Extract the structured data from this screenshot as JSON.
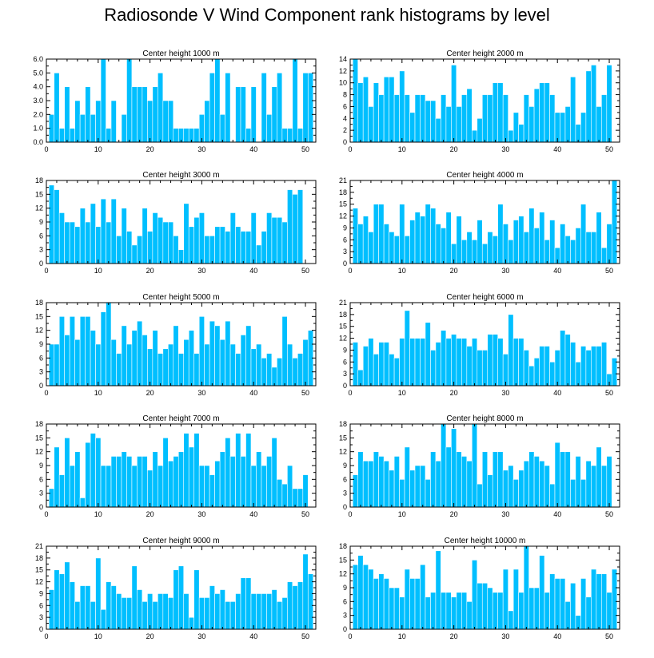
{
  "figure": {
    "title": "Radiosonde V Wind Component rank histograms by level",
    "bar_color": "#00bfff",
    "bar_edge_color": "#ffffff",
    "axis_color": "#000000"
  },
  "chart_data": [
    {
      "type": "bar",
      "title": "Center height 1000 m",
      "x": [
        1,
        2,
        3,
        4,
        5,
        6,
        7,
        8,
        9,
        10,
        11,
        12,
        13,
        14,
        15,
        16,
        17,
        18,
        19,
        20,
        21,
        22,
        23,
        24,
        25,
        26,
        27,
        28,
        29,
        30,
        31,
        32,
        33,
        34,
        35,
        36,
        37,
        38,
        39,
        40,
        41,
        42,
        43,
        44,
        45,
        46,
        47,
        48,
        49,
        50,
        51
      ],
      "values": [
        2,
        5,
        1,
        4,
        1,
        3,
        2,
        4,
        2,
        3,
        6,
        1,
        3,
        0,
        2,
        6,
        4,
        4,
        4,
        3,
        4,
        5,
        3,
        3,
        1,
        1,
        1,
        1,
        1,
        2,
        3,
        5,
        6,
        2,
        5,
        0,
        4,
        4,
        1,
        4,
        0,
        5,
        2,
        4,
        5,
        1,
        1,
        6,
        1,
        5,
        5
      ],
      "xlim": [
        0,
        52
      ],
      "ylim": [
        0,
        6
      ],
      "xticks": [
        0,
        10,
        20,
        30,
        40,
        50
      ],
      "yticks": [
        0,
        1,
        2,
        3,
        4,
        5,
        6
      ],
      "ytick_labels": [
        "0.0",
        "1.0",
        "2.0",
        "3.0",
        "4.0",
        "5.0",
        "6.0"
      ],
      "xlabel": "",
      "ylabel": ""
    },
    {
      "type": "bar",
      "title": "Center height 2000 m",
      "x": [
        1,
        2,
        3,
        4,
        5,
        6,
        7,
        8,
        9,
        10,
        11,
        12,
        13,
        14,
        15,
        16,
        17,
        18,
        19,
        20,
        21,
        22,
        23,
        24,
        25,
        26,
        27,
        28,
        29,
        30,
        31,
        32,
        33,
        34,
        35,
        36,
        37,
        38,
        39,
        40,
        41,
        42,
        43,
        44,
        45,
        46,
        47,
        48,
        49,
        50,
        51
      ],
      "values": [
        14,
        10,
        11,
        6,
        10,
        8,
        11,
        11,
        8,
        12,
        8,
        5,
        8,
        8,
        7,
        7,
        4,
        8,
        6,
        13,
        6,
        8,
        9,
        2,
        4,
        8,
        8,
        10,
        10,
        8,
        2,
        5,
        3,
        8,
        6,
        9,
        10,
        10,
        8,
        5,
        5,
        6,
        11,
        3,
        5,
        12,
        13,
        6,
        8,
        13,
        0
      ],
      "xlim": [
        0,
        52
      ],
      "ylim": [
        0,
        14
      ],
      "xticks": [
        0,
        10,
        20,
        30,
        40,
        50
      ],
      "yticks": [
        0,
        2,
        4,
        6,
        8,
        10,
        12,
        14
      ],
      "ytick_labels": [
        "0",
        "2",
        "4",
        "6",
        "8",
        "10",
        "12",
        "14"
      ],
      "xlabel": "",
      "ylabel": ""
    },
    {
      "type": "bar",
      "title": "Center height 3000 m",
      "x": [
        1,
        2,
        3,
        4,
        5,
        6,
        7,
        8,
        9,
        10,
        11,
        12,
        13,
        14,
        15,
        16,
        17,
        18,
        19,
        20,
        21,
        22,
        23,
        24,
        25,
        26,
        27,
        28,
        29,
        30,
        31,
        32,
        33,
        34,
        35,
        36,
        37,
        38,
        39,
        40,
        41,
        42,
        43,
        44,
        45,
        46,
        47,
        48,
        49,
        50,
        51
      ],
      "values": [
        17,
        16,
        11,
        9,
        9,
        8,
        12,
        9,
        13,
        8,
        14,
        9,
        14,
        6,
        12,
        7,
        4,
        6,
        12,
        7,
        11,
        10,
        9,
        9,
        6,
        3,
        13,
        8,
        10,
        11,
        6,
        6,
        8,
        8,
        7,
        11,
        8,
        7,
        7,
        11,
        4,
        7,
        11,
        10,
        10,
        9,
        16,
        15,
        16,
        0,
        0
      ],
      "xlim": [
        0,
        52
      ],
      "ylim": [
        0,
        18
      ],
      "xticks": [
        0,
        10,
        20,
        30,
        40,
        50
      ],
      "yticks": [
        0,
        3,
        6,
        9,
        12,
        15,
        18
      ],
      "ytick_labels": [
        "0",
        "3",
        "6",
        "9",
        "12",
        "15",
        "18"
      ],
      "xlabel": "",
      "ylabel": ""
    },
    {
      "type": "bar",
      "title": "Center height 4000 m",
      "x": [
        1,
        2,
        3,
        4,
        5,
        6,
        7,
        8,
        9,
        10,
        11,
        12,
        13,
        14,
        15,
        16,
        17,
        18,
        19,
        20,
        21,
        22,
        23,
        24,
        25,
        26,
        27,
        28,
        29,
        30,
        31,
        32,
        33,
        34,
        35,
        36,
        37,
        38,
        39,
        40,
        41,
        42,
        43,
        44,
        45,
        46,
        47,
        48,
        49,
        50,
        51
      ],
      "values": [
        14,
        10,
        12,
        8,
        15,
        15,
        10,
        8,
        7,
        15,
        7,
        11,
        13,
        12,
        15,
        14,
        10,
        9,
        13,
        5,
        12,
        6,
        8,
        6,
        11,
        5,
        8,
        7,
        15,
        10,
        6,
        11,
        12,
        8,
        14,
        9,
        13,
        6,
        11,
        4,
        10,
        7,
        6,
        9,
        15,
        8,
        8,
        13,
        4,
        10,
        21
      ],
      "xlim": [
        0,
        52
      ],
      "ylim": [
        0,
        21
      ],
      "xticks": [
        0,
        10,
        20,
        30,
        40,
        50
      ],
      "yticks": [
        0,
        3,
        6,
        9,
        12,
        15,
        18,
        21
      ],
      "ytick_labels": [
        "0",
        "3",
        "6",
        "9",
        "12",
        "15",
        "18",
        "21"
      ],
      "xlabel": "",
      "ylabel": ""
    },
    {
      "type": "bar",
      "title": "Center height 5000 m",
      "x": [
        1,
        2,
        3,
        4,
        5,
        6,
        7,
        8,
        9,
        10,
        11,
        12,
        13,
        14,
        15,
        16,
        17,
        18,
        19,
        20,
        21,
        22,
        23,
        24,
        25,
        26,
        27,
        28,
        29,
        30,
        31,
        32,
        33,
        34,
        35,
        36,
        37,
        38,
        39,
        40,
        41,
        42,
        43,
        44,
        45,
        46,
        47,
        48,
        49,
        50,
        51
      ],
      "values": [
        9,
        9,
        15,
        11,
        15,
        10,
        15,
        15,
        12,
        9,
        16,
        18,
        10,
        7,
        13,
        9,
        12,
        14,
        11,
        8,
        12,
        7,
        8,
        9,
        13,
        7,
        10,
        12,
        7,
        15,
        9,
        14,
        13,
        10,
        14,
        9,
        7,
        11,
        13,
        8,
        9,
        6,
        7,
        4,
        6,
        15,
        9,
        6,
        7,
        10,
        12
      ],
      "xlim": [
        0,
        52
      ],
      "ylim": [
        0,
        18
      ],
      "xticks": [
        0,
        10,
        20,
        30,
        40,
        50
      ],
      "yticks": [
        0,
        3,
        6,
        9,
        12,
        15,
        18
      ],
      "ytick_labels": [
        "0",
        "3",
        "6",
        "9",
        "12",
        "15",
        "18"
      ],
      "xlabel": "",
      "ylabel": ""
    },
    {
      "type": "bar",
      "title": "Center height 6000 m",
      "x": [
        1,
        2,
        3,
        4,
        5,
        6,
        7,
        8,
        9,
        10,
        11,
        12,
        13,
        14,
        15,
        16,
        17,
        18,
        19,
        20,
        21,
        22,
        23,
        24,
        25,
        26,
        27,
        28,
        29,
        30,
        31,
        32,
        33,
        34,
        35,
        36,
        37,
        38,
        39,
        40,
        41,
        42,
        43,
        44,
        45,
        46,
        47,
        48,
        49,
        50,
        51
      ],
      "values": [
        11,
        4,
        10,
        12,
        8,
        11,
        11,
        8,
        7,
        12,
        19,
        12,
        12,
        12,
        16,
        9,
        11,
        14,
        12,
        13,
        12,
        12,
        10,
        12,
        9,
        9,
        13,
        13,
        12,
        8,
        18,
        12,
        12,
        9,
        5,
        7,
        10,
        10,
        6,
        9,
        14,
        13,
        11,
        6,
        10,
        9,
        10,
        10,
        11,
        3,
        7
      ],
      "xlim": [
        0,
        52
      ],
      "ylim": [
        0,
        21
      ],
      "xticks": [
        0,
        10,
        20,
        30,
        40,
        50
      ],
      "yticks": [
        0,
        3,
        6,
        9,
        12,
        15,
        18,
        21
      ],
      "ytick_labels": [
        "0",
        "3",
        "6",
        "9",
        "12",
        "15",
        "18",
        "21"
      ],
      "xlabel": "",
      "ylabel": ""
    },
    {
      "type": "bar",
      "title": "Center height 7000 m",
      "x": [
        1,
        2,
        3,
        4,
        5,
        6,
        7,
        8,
        9,
        10,
        11,
        12,
        13,
        14,
        15,
        16,
        17,
        18,
        19,
        20,
        21,
        22,
        23,
        24,
        25,
        26,
        27,
        28,
        29,
        30,
        31,
        32,
        33,
        34,
        35,
        36,
        37,
        38,
        39,
        40,
        41,
        42,
        43,
        44,
        45,
        46,
        47,
        48,
        49,
        50,
        51
      ],
      "values": [
        4,
        13,
        7,
        15,
        9,
        12,
        2,
        14,
        16,
        15,
        9,
        9,
        11,
        11,
        12,
        11,
        9,
        11,
        11,
        8,
        12,
        9,
        15,
        10,
        11,
        12,
        16,
        13,
        16,
        9,
        9,
        7,
        10,
        12,
        15,
        11,
        16,
        11,
        16,
        9,
        12,
        9,
        11,
        15,
        6,
        5,
        9,
        4,
        4,
        7,
        0
      ],
      "xlim": [
        0,
        52
      ],
      "ylim": [
        0,
        18
      ],
      "xticks": [
        0,
        10,
        20,
        30,
        40,
        50
      ],
      "yticks": [
        0,
        3,
        6,
        9,
        12,
        15,
        18
      ],
      "ytick_labels": [
        "0",
        "3",
        "6",
        "9",
        "12",
        "15",
        "18"
      ],
      "xlabel": "",
      "ylabel": ""
    },
    {
      "type": "bar",
      "title": "Center height 8000 m",
      "x": [
        1,
        2,
        3,
        4,
        5,
        6,
        7,
        8,
        9,
        10,
        11,
        12,
        13,
        14,
        15,
        16,
        17,
        18,
        19,
        20,
        21,
        22,
        23,
        24,
        25,
        26,
        27,
        28,
        29,
        30,
        31,
        32,
        33,
        34,
        35,
        36,
        37,
        38,
        39,
        40,
        41,
        42,
        43,
        44,
        45,
        46,
        47,
        48,
        49,
        50,
        51
      ],
      "values": [
        7,
        12,
        10,
        10,
        12,
        11,
        10,
        8,
        11,
        6,
        13,
        8,
        9,
        9,
        6,
        12,
        10,
        18,
        13,
        17,
        12,
        11,
        10,
        18,
        5,
        12,
        7,
        12,
        12,
        8,
        9,
        6,
        8,
        10,
        12,
        11,
        10,
        9,
        5,
        14,
        12,
        12,
        6,
        11,
        6,
        10,
        9,
        13,
        9,
        11,
        0
      ],
      "xlim": [
        0,
        52
      ],
      "ylim": [
        0,
        18
      ],
      "xticks": [
        0,
        10,
        20,
        30,
        40,
        50
      ],
      "yticks": [
        0,
        3,
        6,
        9,
        12,
        15,
        18
      ],
      "ytick_labels": [
        "0",
        "3",
        "6",
        "9",
        "12",
        "15",
        "18"
      ],
      "xlabel": "",
      "ylabel": ""
    },
    {
      "type": "bar",
      "title": "Center height 9000 m",
      "x": [
        1,
        2,
        3,
        4,
        5,
        6,
        7,
        8,
        9,
        10,
        11,
        12,
        13,
        14,
        15,
        16,
        17,
        18,
        19,
        20,
        21,
        22,
        23,
        24,
        25,
        26,
        27,
        28,
        29,
        30,
        31,
        32,
        33,
        34,
        35,
        36,
        37,
        38,
        39,
        40,
        41,
        42,
        43,
        44,
        45,
        46,
        47,
        48,
        49,
        50,
        51
      ],
      "values": [
        10,
        15,
        14,
        17,
        12,
        7,
        11,
        11,
        7,
        18,
        5,
        12,
        11,
        9,
        8,
        8,
        16,
        10,
        7,
        9,
        7,
        9,
        9,
        8,
        15,
        16,
        9,
        3,
        15,
        8,
        8,
        11,
        9,
        10,
        7,
        7,
        9,
        13,
        13,
        9,
        9,
        9,
        9,
        10,
        7,
        8,
        12,
        11,
        12,
        19,
        14
      ],
      "xlim": [
        0,
        52
      ],
      "ylim": [
        0,
        21
      ],
      "xticks": [
        0,
        10,
        20,
        30,
        40,
        50
      ],
      "yticks": [
        0,
        3,
        6,
        9,
        12,
        15,
        18,
        21
      ],
      "ytick_labels": [
        "0",
        "3",
        "6",
        "9",
        "12",
        "15",
        "18",
        "21"
      ],
      "xlabel": "",
      "ylabel": ""
    },
    {
      "type": "bar",
      "title": "Center height 10000 m",
      "x": [
        1,
        2,
        3,
        4,
        5,
        6,
        7,
        8,
        9,
        10,
        11,
        12,
        13,
        14,
        15,
        16,
        17,
        18,
        19,
        20,
        21,
        22,
        23,
        24,
        25,
        26,
        27,
        28,
        29,
        30,
        31,
        32,
        33,
        34,
        35,
        36,
        37,
        38,
        39,
        40,
        41,
        42,
        43,
        44,
        45,
        46,
        47,
        48,
        49,
        50,
        51
      ],
      "values": [
        14,
        16,
        14,
        13,
        11,
        12,
        11,
        9,
        9,
        7,
        13,
        11,
        11,
        14,
        7,
        8,
        17,
        8,
        8,
        7,
        8,
        8,
        6,
        15,
        10,
        10,
        9,
        8,
        8,
        13,
        4,
        13,
        8,
        18,
        9,
        9,
        16,
        8,
        12,
        11,
        11,
        6,
        10,
        3,
        11,
        7,
        13,
        12,
        12,
        8,
        13
      ],
      "xlim": [
        0,
        52
      ],
      "ylim": [
        0,
        18
      ],
      "xticks": [
        0,
        10,
        20,
        30,
        40,
        50
      ],
      "yticks": [
        0,
        3,
        6,
        9,
        12,
        15,
        18
      ],
      "ytick_labels": [
        "0",
        "3",
        "6",
        "9",
        "12",
        "15",
        "18"
      ],
      "xlabel": "",
      "ylabel": ""
    }
  ]
}
